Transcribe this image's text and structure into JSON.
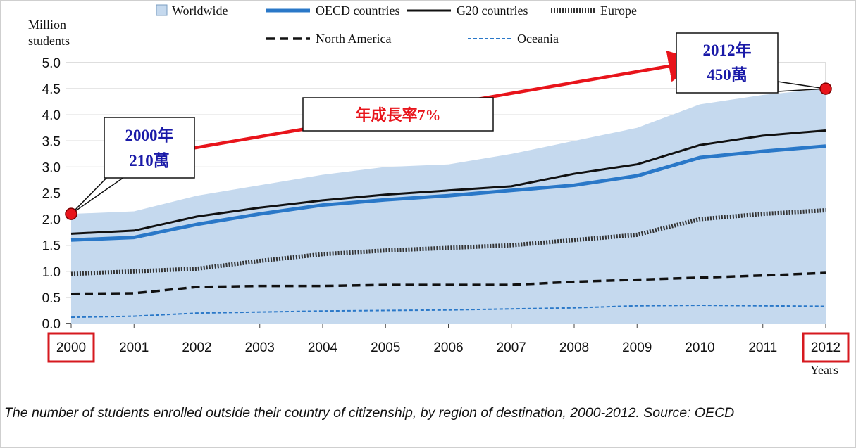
{
  "chart_data": {
    "type": "area",
    "y_unit_label": [
      "Million",
      "students"
    ],
    "xlabel": "Years",
    "ylim": [
      0,
      5
    ],
    "yticks": [
      "0.0",
      "0.5",
      "1.0",
      "1.5",
      "2.0",
      "2.5",
      "3.0",
      "3.5",
      "4.0",
      "4.5",
      "5.0"
    ],
    "categories": [
      "2000",
      "2001",
      "2002",
      "2003",
      "2004",
      "2005",
      "2006",
      "2007",
      "2008",
      "2009",
      "2010",
      "2011",
      "2012"
    ],
    "grid": true,
    "legend_position": "top",
    "series": [
      {
        "name": "Worldwide",
        "style": "area",
        "color": "#c5d9ee",
        "values": [
          2.1,
          2.15,
          2.45,
          2.65,
          2.85,
          3.0,
          3.05,
          3.25,
          3.5,
          3.75,
          4.2,
          4.38,
          4.5
        ]
      },
      {
        "name": "OECD countries",
        "style": "solid-thick",
        "color": "#2a78c8",
        "values": [
          1.6,
          1.65,
          1.9,
          2.1,
          2.27,
          2.37,
          2.45,
          2.55,
          2.65,
          2.83,
          3.18,
          3.3,
          3.4
        ]
      },
      {
        "name": "G20 countries",
        "style": "solid",
        "color": "#111111",
        "values": [
          1.72,
          1.78,
          2.05,
          2.22,
          2.36,
          2.47,
          2.55,
          2.63,
          2.87,
          3.05,
          3.42,
          3.6,
          3.7
        ]
      },
      {
        "name": "Europe",
        "style": "dotted-thick",
        "color": "#333333",
        "values": [
          0.95,
          1.0,
          1.05,
          1.2,
          1.33,
          1.4,
          1.45,
          1.5,
          1.6,
          1.7,
          2.0,
          2.1,
          2.17
        ]
      },
      {
        "name": "North America",
        "style": "dashed",
        "color": "#111111",
        "values": [
          0.57,
          0.58,
          0.7,
          0.72,
          0.72,
          0.74,
          0.74,
          0.74,
          0.8,
          0.84,
          0.88,
          0.92,
          0.97
        ]
      },
      {
        "name": "Oceania",
        "style": "dashed-thin",
        "color": "#2a78c8",
        "values": [
          0.12,
          0.14,
          0.2,
          0.22,
          0.24,
          0.25,
          0.26,
          0.28,
          0.3,
          0.34,
          0.35,
          0.34,
          0.33
        ]
      }
    ],
    "annotations": {
      "start": {
        "year": "2000",
        "value": 2.1,
        "label_line1": "2000年",
        "label_line2": "210萬"
      },
      "end": {
        "year": "2012",
        "value": 4.5,
        "label_line1": "2012年",
        "label_line2": "450萬"
      },
      "growth_label": "年成長率7%"
    },
    "highlighted_ticks": [
      "2000",
      "2012"
    ]
  },
  "caption": "The number of students enrolled outside their country of citizenship, by region of destination, 2000-2012. Source: OECD",
  "colors": {
    "accent_red": "#e8141b",
    "callout_text": "#1a1aa8",
    "highlight_box": "#d6191f"
  }
}
